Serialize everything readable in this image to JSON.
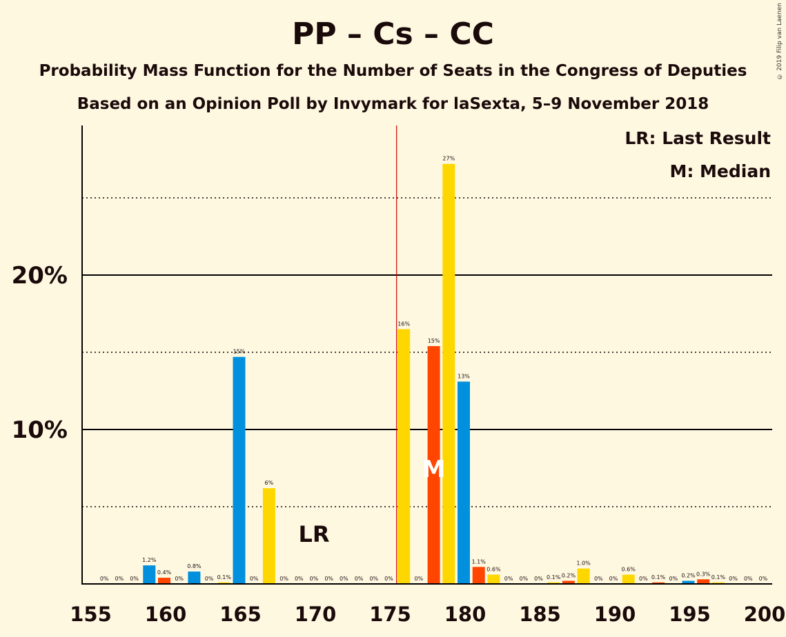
{
  "title": "PP – Cs – CC",
  "subtitle_1": "Probability Mass Function for the Number of Seats in the Congress of Deputies",
  "subtitle_2": "Based on an Opinion Poll by Invymark for laSexta, 5–9 November 2018",
  "copyright": "© 2019 Filip van Laenen",
  "legend": {
    "last_result": "LR: Last Result",
    "median": "M: Median"
  },
  "chart_data": {
    "type": "bar",
    "xlim": [
      155,
      200
    ],
    "ylim": [
      0,
      30
    ],
    "x_ticks": [
      155,
      160,
      165,
      170,
      175,
      180,
      185,
      190,
      195,
      200
    ],
    "y_ticks": [
      {
        "value": 10,
        "label": "10%"
      },
      {
        "value": 20,
        "label": "20%"
      }
    ],
    "solid_gridlines": [
      10,
      20
    ],
    "dotted_gridlines": [
      5,
      15,
      25
    ],
    "majority_line": 176,
    "last_result": {
      "seat": 170,
      "label": "LR"
    },
    "median": {
      "seat": 178,
      "label": "M"
    },
    "colors": {
      "PP": "#0090dd",
      "Cs": "#ff4500",
      "CC": "#ffd700",
      "majority": "#cc0000"
    },
    "bars": [
      {
        "seat": 156,
        "value": 0,
        "label": "0%",
        "color": "#ffd700"
      },
      {
        "seat": 157,
        "value": 0,
        "label": "0%",
        "color": "#ffd700"
      },
      {
        "seat": 158,
        "value": 0,
        "label": "0%",
        "color": "#ffd700"
      },
      {
        "seat": 159,
        "value": 1.2,
        "label": "1.2%",
        "color": "#0090dd"
      },
      {
        "seat": 160,
        "value": 0.4,
        "label": "0.4%",
        "color": "#ff4500"
      },
      {
        "seat": 161,
        "value": 0,
        "label": "0%",
        "color": "#ffd700"
      },
      {
        "seat": 162,
        "value": 0.8,
        "label": "0.8%",
        "color": "#0090dd"
      },
      {
        "seat": 163,
        "value": 0,
        "label": "0%",
        "color": "#ffd700"
      },
      {
        "seat": 164,
        "value": 0.1,
        "label": "0.1%",
        "color": "#ffd700"
      },
      {
        "seat": 165,
        "value": 14.7,
        "label": "15%",
        "color": "#0090dd"
      },
      {
        "seat": 166,
        "value": 0,
        "label": "0%",
        "color": "#ffd700"
      },
      {
        "seat": 167,
        "value": 6.2,
        "label": "6%",
        "color": "#ffd700"
      },
      {
        "seat": 168,
        "value": 0,
        "label": "0%",
        "color": "#ffd700"
      },
      {
        "seat": 169,
        "value": 0,
        "label": "0%",
        "color": "#ffd700"
      },
      {
        "seat": 170,
        "value": 0,
        "label": "0%",
        "color": "#ffd700"
      },
      {
        "seat": 171,
        "value": 0,
        "label": "0%",
        "color": "#ffd700"
      },
      {
        "seat": 172,
        "value": 0,
        "label": "0%",
        "color": "#ffd700"
      },
      {
        "seat": 173,
        "value": 0,
        "label": "0%",
        "color": "#ffd700"
      },
      {
        "seat": 174,
        "value": 0,
        "label": "0%",
        "color": "#ffd700"
      },
      {
        "seat": 175,
        "value": 0,
        "label": "0%",
        "color": "#ffd700"
      },
      {
        "seat": 176,
        "value": 16.5,
        "label": "16%",
        "color": "#ffd700"
      },
      {
        "seat": 177,
        "value": 0,
        "label": "0%",
        "color": "#ffd700"
      },
      {
        "seat": 178,
        "value": 15.4,
        "label": "15%",
        "color": "#ff4500"
      },
      {
        "seat": 179,
        "value": 27.2,
        "label": "27%",
        "color": "#ffd700"
      },
      {
        "seat": 180,
        "value": 13.1,
        "label": "13%",
        "color": "#0090dd"
      },
      {
        "seat": 181,
        "value": 1.1,
        "label": "1.1%",
        "color": "#ff4500"
      },
      {
        "seat": 182,
        "value": 0.6,
        "label": "0.6%",
        "color": "#ffd700"
      },
      {
        "seat": 183,
        "value": 0,
        "label": "0%",
        "color": "#ffd700"
      },
      {
        "seat": 184,
        "value": 0,
        "label": "0%",
        "color": "#ffd700"
      },
      {
        "seat": 185,
        "value": 0,
        "label": "0%",
        "color": "#ffd700"
      },
      {
        "seat": 186,
        "value": 0.1,
        "label": "0.1%",
        "color": "#ffd700"
      },
      {
        "seat": 187,
        "value": 0.2,
        "label": "0.2%",
        "color": "#ff4500"
      },
      {
        "seat": 188,
        "value": 1.0,
        "label": "1.0%",
        "color": "#ffd700"
      },
      {
        "seat": 189,
        "value": 0,
        "label": "0%",
        "color": "#ffd700"
      },
      {
        "seat": 190,
        "value": 0,
        "label": "0%",
        "color": "#ffd700"
      },
      {
        "seat": 191,
        "value": 0.6,
        "label": "0.6%",
        "color": "#ffd700"
      },
      {
        "seat": 192,
        "value": 0,
        "label": "0%",
        "color": "#ffd700"
      },
      {
        "seat": 193,
        "value": 0.1,
        "label": "0.1%",
        "color": "#ff4500"
      },
      {
        "seat": 194,
        "value": 0,
        "label": "0%",
        "color": "#ffd700"
      },
      {
        "seat": 195,
        "value": 0.2,
        "label": "0.2%",
        "color": "#0090dd"
      },
      {
        "seat": 196,
        "value": 0.3,
        "label": "0.3%",
        "color": "#ff4500"
      },
      {
        "seat": 197,
        "value": 0.1,
        "label": "0.1%",
        "color": "#ffd700"
      },
      {
        "seat": 198,
        "value": 0,
        "label": "0%",
        "color": "#ffd700"
      },
      {
        "seat": 199,
        "value": 0,
        "label": "0%",
        "color": "#ffd700"
      },
      {
        "seat": 200,
        "value": 0,
        "label": "0%",
        "color": "#ffd700"
      }
    ]
  }
}
